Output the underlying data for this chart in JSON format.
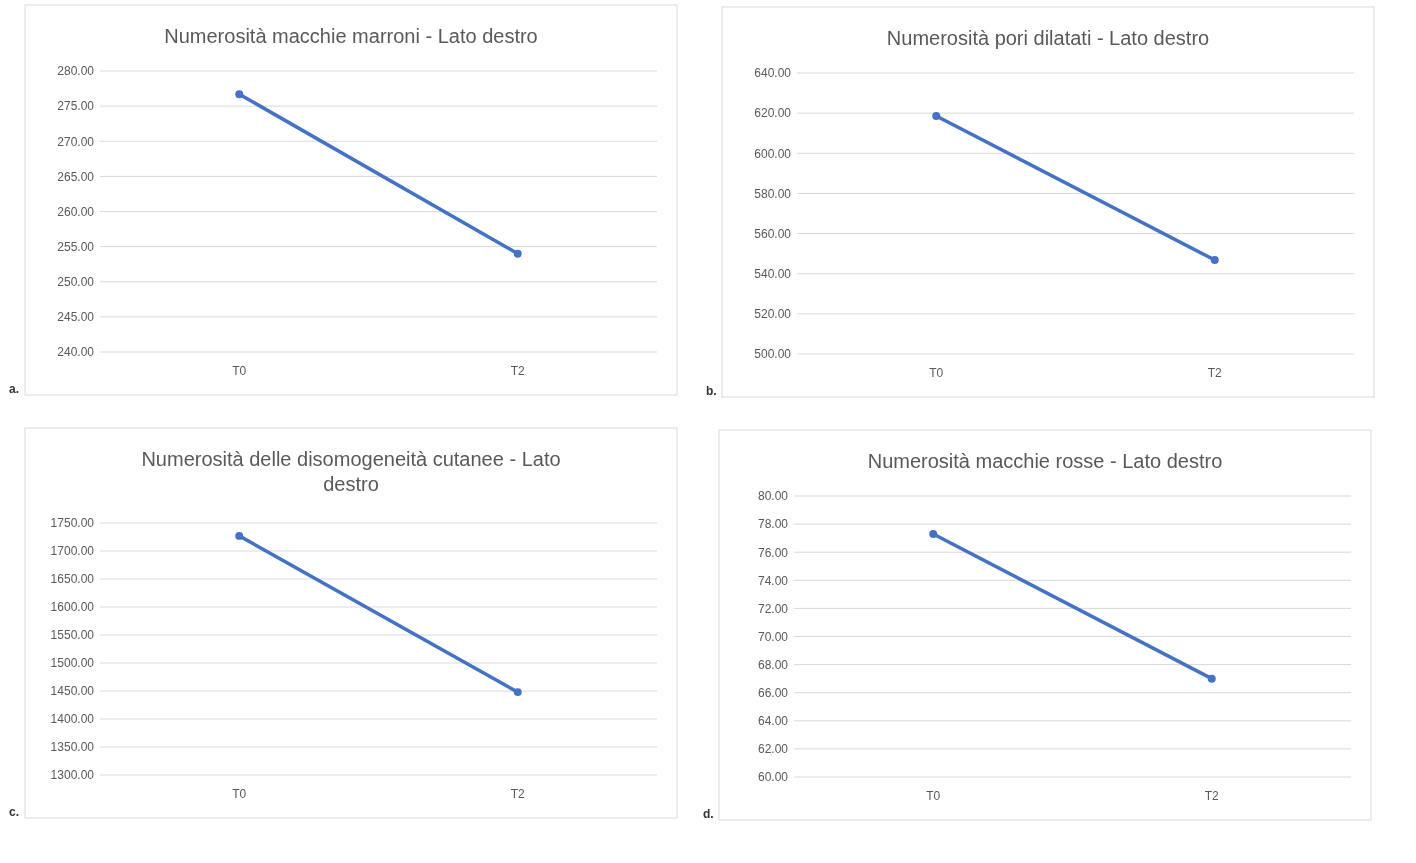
{
  "chart_data": [
    {
      "type": "line",
      "title": "Numerosità macchie marroni - Lato destro",
      "categories": [
        "T0",
        "T2"
      ],
      "series": [
        {
          "color": "#4472c4",
          "values": [
            276.7,
            254.0
          ]
        }
      ],
      "ylim": [
        240,
        280
      ],
      "yticks": [
        {
          "value": 240,
          "label": "240.00"
        },
        {
          "value": 245,
          "label": "245.00"
        },
        {
          "value": 250,
          "label": "250.00"
        },
        {
          "value": 255,
          "label": "255.00"
        },
        {
          "value": 260,
          "label": "260.00"
        },
        {
          "value": 265,
          "label": "265.00"
        },
        {
          "value": 270,
          "label": "270.00"
        },
        {
          "value": 275,
          "label": "275.00"
        },
        {
          "value": 280,
          "label": "280.00"
        }
      ],
      "grid": "y",
      "marker": "circle",
      "line_style": "solid",
      "annotations": [
        "a."
      ]
    },
    {
      "type": "line",
      "title": "Numerosità pori dilatati - Lato destro",
      "categories": [
        "T0",
        "T2"
      ],
      "series": [
        {
          "color": "#4472c4",
          "values": [
            618.6,
            546.8
          ]
        }
      ],
      "ylim": [
        500,
        640
      ],
      "yticks": [
        {
          "value": 500,
          "label": "500.00"
        },
        {
          "value": 520,
          "label": "520.00"
        },
        {
          "value": 540,
          "label": "540.00"
        },
        {
          "value": 560,
          "label": "560.00"
        },
        {
          "value": 580,
          "label": "580.00"
        },
        {
          "value": 600,
          "label": "600.00"
        },
        {
          "value": 620,
          "label": "620.00"
        },
        {
          "value": 640,
          "label": "640.00"
        }
      ],
      "grid": "y",
      "marker": "circle",
      "line_style": "solid",
      "annotations": [
        "b."
      ]
    },
    {
      "type": "line",
      "title": "Numerosità delle disomogeneità cutanee - Lato destro",
      "categories": [
        "T0",
        "T2"
      ],
      "series": [
        {
          "color": "#4472c4",
          "values": [
            1727,
            1448
          ]
        }
      ],
      "ylim": [
        1300,
        1750
      ],
      "yticks": [
        {
          "value": 1300,
          "label": "1300.00"
        },
        {
          "value": 1350,
          "label": "1350.00"
        },
        {
          "value": 1400,
          "label": "1400.00"
        },
        {
          "value": 1450,
          "label": "1450.00"
        },
        {
          "value": 1500,
          "label": "1500.00"
        },
        {
          "value": 1550,
          "label": "1550.00"
        },
        {
          "value": 1600,
          "label": "1600.00"
        },
        {
          "value": 1650,
          "label": "1650.00"
        },
        {
          "value": 1700,
          "label": "1700.00"
        },
        {
          "value": 1750,
          "label": "1750.00"
        }
      ],
      "grid": "y",
      "marker": "circle",
      "line_style": "solid",
      "annotations": [
        "c."
      ]
    },
    {
      "type": "line",
      "title": "Numerosità macchie rosse - Lato destro",
      "categories": [
        "T0",
        "T2"
      ],
      "series": [
        {
          "color": "#4472c4",
          "values": [
            77.3,
            67.0
          ]
        }
      ],
      "ylim": [
        60,
        80
      ],
      "yticks": [
        {
          "value": 60,
          "label": "60.00"
        },
        {
          "value": 62,
          "label": "62.00"
        },
        {
          "value": 64,
          "label": "64.00"
        },
        {
          "value": 66,
          "label": "66.00"
        },
        {
          "value": 68,
          "label": "68.00"
        },
        {
          "value": 70,
          "label": "70.00"
        },
        {
          "value": 72,
          "label": "72.00"
        },
        {
          "value": 74,
          "label": "74.00"
        },
        {
          "value": 76,
          "label": "76.00"
        },
        {
          "value": 78,
          "label": "78.00"
        },
        {
          "value": 80,
          "label": "80.00"
        }
      ],
      "grid": "y",
      "marker": "circle",
      "line_style": "solid",
      "annotations": [
        "d."
      ]
    }
  ]
}
